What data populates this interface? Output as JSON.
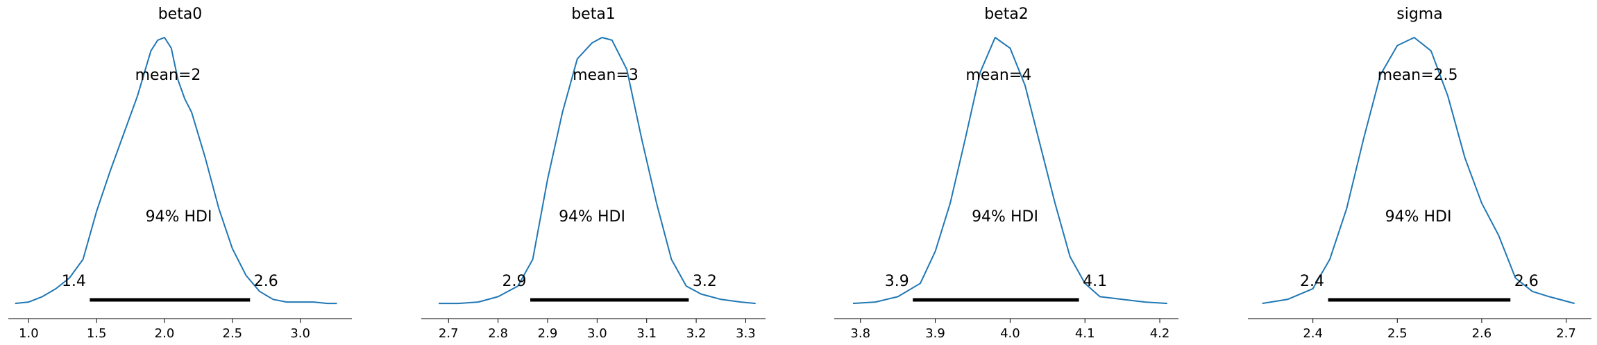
{
  "chart_data": [
    {
      "type": "line",
      "title": "beta0",
      "xlim": [
        0.85,
        3.38
      ],
      "x_ticks": [
        1.0,
        1.5,
        2.0,
        2.5,
        3.0
      ],
      "x_tick_labels": [
        "1.0",
        "1.5",
        "2.0",
        "2.5",
        "3.0"
      ],
      "series_color": "#1f77b4",
      "density": {
        "x": [
          0.9,
          1.0,
          1.1,
          1.2,
          1.3,
          1.4,
          1.5,
          1.6,
          1.7,
          1.8,
          1.9,
          1.95,
          2.0,
          2.05,
          2.1,
          2.15,
          2.2,
          2.3,
          2.4,
          2.5,
          2.6,
          2.7,
          2.8,
          2.9,
          3.0,
          3.1,
          3.2,
          3.27
        ],
        "y": [
          0.005,
          0.01,
          0.03,
          0.06,
          0.1,
          0.17,
          0.35,
          0.5,
          0.64,
          0.78,
          0.95,
          0.99,
          1.0,
          0.96,
          0.84,
          0.77,
          0.72,
          0.55,
          0.36,
          0.21,
          0.11,
          0.05,
          0.02,
          0.01,
          0.01,
          0.01,
          0.005,
          0.005
        ]
      },
      "mean_label": "mean=2",
      "hdi_label": "94% HDI",
      "hdi": [
        1.45,
        2.63
      ],
      "hdi_low_label": "1.4",
      "hdi_high_label": "2.6"
    },
    {
      "type": "line",
      "title": "beta1",
      "xlim": [
        2.645,
        3.34
      ],
      "x_ticks": [
        2.7,
        2.8,
        2.9,
        3.0,
        3.1,
        3.2,
        3.3
      ],
      "x_tick_labels": [
        "2.7",
        "2.8",
        "2.9",
        "3.0",
        "3.1",
        "3.2",
        "3.3"
      ],
      "series_color": "#1f77b4",
      "density": {
        "x": [
          2.68,
          2.72,
          2.76,
          2.8,
          2.84,
          2.87,
          2.9,
          2.93,
          2.96,
          2.99,
          3.01,
          3.03,
          3.06,
          3.09,
          3.12,
          3.15,
          3.18,
          3.21,
          3.25,
          3.29,
          3.32
        ],
        "y": [
          0.005,
          0.005,
          0.01,
          0.03,
          0.07,
          0.17,
          0.47,
          0.72,
          0.92,
          0.98,
          1.0,
          0.99,
          0.88,
          0.62,
          0.38,
          0.17,
          0.07,
          0.04,
          0.02,
          0.01,
          0.005
        ]
      },
      "mean_label": "mean=3",
      "hdi_label": "94% HDI",
      "hdi": [
        2.865,
        3.185
      ],
      "hdi_low_label": "2.9",
      "hdi_high_label": "3.2"
    },
    {
      "type": "line",
      "title": "beta2",
      "xlim": [
        3.765,
        4.225
      ],
      "x_ticks": [
        3.8,
        3.9,
        4.0,
        4.1,
        4.2
      ],
      "x_tick_labels": [
        "3.8",
        "3.9",
        "4.0",
        "4.1",
        "4.2"
      ],
      "series_color": "#1f77b4",
      "density": {
        "x": [
          3.79,
          3.82,
          3.85,
          3.88,
          3.9,
          3.92,
          3.94,
          3.96,
          3.98,
          4.0,
          4.02,
          4.04,
          4.06,
          4.08,
          4.1,
          4.12,
          4.15,
          4.18,
          4.21
        ],
        "y": [
          0.005,
          0.01,
          0.03,
          0.08,
          0.2,
          0.38,
          0.62,
          0.87,
          1.0,
          0.96,
          0.82,
          0.6,
          0.38,
          0.18,
          0.08,
          0.03,
          0.02,
          0.01,
          0.005
        ]
      },
      "mean_label": "mean=4",
      "hdi_label": "94% HDI",
      "hdi": [
        3.87,
        4.092
      ],
      "hdi_low_label": "3.9",
      "hdi_high_label": "4.1"
    },
    {
      "type": "line",
      "title": "sigma",
      "xlim": [
        2.323,
        2.73
      ],
      "x_ticks": [
        2.4,
        2.5,
        2.6,
        2.7
      ],
      "x_tick_labels": [
        "2.4",
        "2.5",
        "2.6",
        "2.7"
      ],
      "series_color": "#1f77b4",
      "density": {
        "x": [
          2.34,
          2.37,
          2.4,
          2.42,
          2.44,
          2.46,
          2.48,
          2.5,
          2.52,
          2.54,
          2.56,
          2.58,
          2.6,
          2.62,
          2.64,
          2.66,
          2.68,
          2.71
        ],
        "y": [
          0.005,
          0.02,
          0.06,
          0.17,
          0.36,
          0.62,
          0.86,
          0.97,
          1.0,
          0.95,
          0.78,
          0.55,
          0.38,
          0.26,
          0.1,
          0.05,
          0.03,
          0.005
        ]
      },
      "mean_label": "mean=2.5",
      "hdi_label": "94% HDI",
      "hdi": [
        2.418,
        2.634
      ],
      "hdi_low_label": "2.4",
      "hdi_high_label": "2.6"
    }
  ]
}
